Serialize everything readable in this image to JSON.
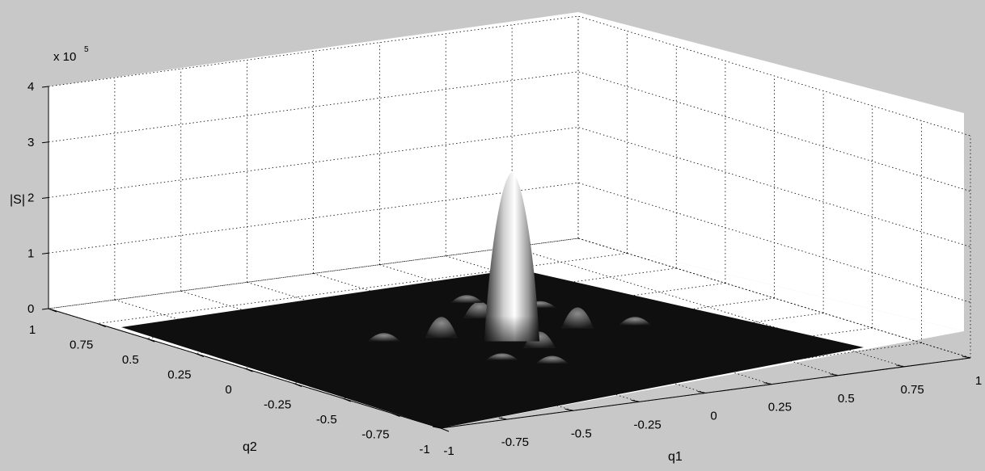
{
  "chart_data": {
    "type": "surface",
    "title": "",
    "xlabel": "q1",
    "ylabel": "q2",
    "zlabel": "|S|",
    "z_exponent_label": "x 10",
    "z_exponent": "5",
    "xlim": [
      -1,
      1
    ],
    "ylim": [
      -1,
      1
    ],
    "zlim": [
      0,
      400000
    ],
    "x_ticks": [
      "-1",
      "-0.75",
      "-0.5",
      "-0.25",
      "0",
      "0.25",
      "0.5",
      "0.75",
      "1"
    ],
    "y_ticks": [
      "1",
      "0.75",
      "0.5",
      "0.25",
      "0",
      "-0.25",
      "-0.5",
      "-0.75",
      "-1"
    ],
    "z_ticks": [
      "0",
      "1",
      "2",
      "3",
      "4"
    ],
    "grid": true,
    "colormap": "gray",
    "peak": {
      "q1": 0,
      "q2": 0,
      "value": 290000
    },
    "surface_function": "sinc-like main lobe centered at origin with small side lobes"
  }
}
